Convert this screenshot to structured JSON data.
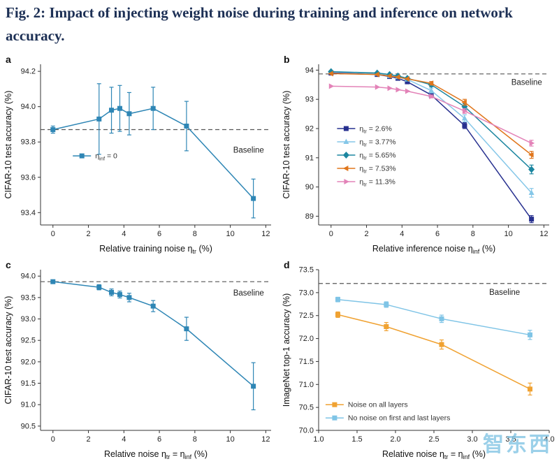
{
  "page": {
    "title": "Fig. 2: Impact of injecting weight noise during training and inference on network accuracy."
  },
  "watermark": {
    "text": "智东西"
  },
  "chart_data": [
    {
      "panel": "a",
      "type": "line",
      "xlabel": "Relative training noise η_[tr] (%)",
      "ylabel": "CIFAR-10 test accuracy (%)",
      "xlim": [
        -0.7,
        12.3
      ],
      "xticks": [
        0,
        2,
        4,
        6,
        8,
        10,
        12
      ],
      "xtick_decimals": 0,
      "ylim": [
        93.33,
        94.24
      ],
      "yticks": [
        93.4,
        93.6,
        93.8,
        94.0,
        94.2
      ],
      "ytick_decimals": 1,
      "baseline": {
        "y": 93.87,
        "label": "Baseline",
        "label_x": 11.9,
        "label_y": 93.74,
        "anchor": "end"
      },
      "legend": {
        "fx": 0.14,
        "fy": 0.57
      },
      "series": [
        {
          "name": "η_[inf] = 0",
          "color": "#2e86b5",
          "marker": "square",
          "x": [
            0,
            2.6,
            3.3,
            3.77,
            4.3,
            5.65,
            7.53,
            11.3
          ],
          "y": [
            93.87,
            93.93,
            93.98,
            93.99,
            93.96,
            93.99,
            93.89,
            93.48
          ],
          "yerr": [
            0.02,
            0.2,
            0.13,
            0.13,
            0.12,
            0.12,
            0.14,
            0.11
          ]
        }
      ]
    },
    {
      "panel": "b",
      "type": "line",
      "xlabel": "Relative inference noise η_[inf] (%)",
      "ylabel": "CIFAR-10 test accuracy (%)",
      "xlim": [
        -0.7,
        12.3
      ],
      "xticks": [
        0,
        2,
        4,
        6,
        8,
        10,
        12
      ],
      "xtick_decimals": 0,
      "ylim": [
        88.7,
        94.2
      ],
      "yticks": [
        89,
        90,
        91,
        92,
        93,
        94
      ],
      "ytick_decimals": 0,
      "baseline": {
        "y": 93.87,
        "label": "Baseline",
        "label_x": 11.9,
        "label_y": 93.5,
        "anchor": "end"
      },
      "legend": {
        "fx": 0.08,
        "fy": 0.4
      },
      "series": [
        {
          "name": "η_[tr] = 2.6%",
          "color": "#27308f",
          "marker": "square",
          "x": [
            0,
            2.6,
            3.3,
            3.77,
            4.3,
            5.65,
            7.53,
            11.3
          ],
          "y": [
            93.9,
            93.85,
            93.78,
            93.72,
            93.6,
            93.15,
            92.1,
            88.9
          ],
          "yerr": [
            0,
            0,
            0,
            0,
            0,
            0.08,
            0.1,
            0.12
          ]
        },
        {
          "name": "η_[tr] = 3.77%",
          "color": "#85c7e8",
          "marker": "triangle-up",
          "x": [
            0,
            2.6,
            3.3,
            3.77,
            4.3,
            5.65,
            7.53,
            11.3
          ],
          "y": [
            93.95,
            93.88,
            93.8,
            93.76,
            93.68,
            93.3,
            92.35,
            89.8
          ],
          "yerr": [
            0,
            0,
            0,
            0,
            0,
            0.08,
            0.12,
            0.15
          ]
        },
        {
          "name": "η_[tr] = 5.65%",
          "color": "#1c86a0",
          "marker": "diamond",
          "x": [
            0,
            2.6,
            3.3,
            3.77,
            4.3,
            5.65,
            7.53,
            11.3
          ],
          "y": [
            93.95,
            93.9,
            93.85,
            93.8,
            93.72,
            93.5,
            92.75,
            90.6
          ],
          "yerr": [
            0,
            0,
            0,
            0,
            0,
            0.07,
            0.1,
            0.15
          ]
        },
        {
          "name": "η_[tr] = 7.53%",
          "color": "#e0761c",
          "marker": "triangle-left",
          "x": [
            0,
            2.6,
            3.3,
            3.77,
            4.3,
            5.65,
            7.53,
            11.3
          ],
          "y": [
            93.88,
            93.85,
            93.8,
            93.76,
            93.7,
            93.55,
            92.9,
            91.1
          ],
          "yerr": [
            0,
            0,
            0,
            0,
            0,
            0.06,
            0.1,
            0.12
          ]
        },
        {
          "name": "η_[tr] = 11.3%",
          "color": "#e383b8",
          "marker": "triangle-right",
          "x": [
            0,
            2.6,
            3.3,
            3.77,
            4.3,
            5.65,
            7.53,
            11.3
          ],
          "y": [
            93.45,
            93.42,
            93.38,
            93.33,
            93.28,
            93.1,
            92.6,
            91.5
          ],
          "yerr": [
            0,
            0,
            0,
            0,
            0,
            0.05,
            0.08,
            0.1
          ]
        }
      ]
    },
    {
      "panel": "c",
      "type": "line",
      "xlabel": "Relative noise η_[tr] = η_[inf] (%)",
      "ylabel": "CIFAR-10 test accuracy (%)",
      "xlim": [
        -0.7,
        12.3
      ],
      "xticks": [
        0,
        2,
        4,
        6,
        8,
        10,
        12
      ],
      "xtick_decimals": 0,
      "ylim": [
        90.4,
        94.15
      ],
      "yticks": [
        90.5,
        91.0,
        91.5,
        92.0,
        92.5,
        93.0,
        93.5,
        94.0
      ],
      "ytick_decimals": 1,
      "baseline": {
        "y": 93.87,
        "label": "Baseline",
        "label_x": 11.9,
        "label_y": 93.55,
        "anchor": "end"
      },
      "series": [
        {
          "name": null,
          "color": "#2e86b5",
          "marker": "square",
          "x": [
            0,
            2.6,
            3.3,
            3.77,
            4.3,
            5.65,
            7.53,
            11.3
          ],
          "y": [
            93.87,
            93.74,
            93.62,
            93.57,
            93.5,
            93.3,
            92.77,
            91.43
          ],
          "yerr": [
            0.03,
            0.06,
            0.08,
            0.08,
            0.1,
            0.13,
            0.27,
            0.55
          ]
        }
      ]
    },
    {
      "panel": "d",
      "type": "line",
      "xlabel": "Relative noise η_[tr] = η_[inf] (%)",
      "ylabel": "ImageNet top-1 accuracy (%)",
      "xlim": [
        1.0,
        4.0
      ],
      "xticks": [
        1.0,
        1.5,
        2.0,
        2.5,
        3.0,
        3.5,
        4.0
      ],
      "xtick_decimals": 1,
      "ylim": [
        70.0,
        73.5
      ],
      "yticks": [
        70.0,
        70.5,
        71.0,
        71.5,
        72.0,
        72.5,
        73.0,
        73.5
      ],
      "ytick_decimals": 1,
      "baseline": {
        "y": 73.2,
        "label": "Baseline",
        "label_x": 3.62,
        "label_y": 72.95,
        "anchor": "end"
      },
      "legend": {
        "fx": 0.03,
        "fy": 0.84
      },
      "series": [
        {
          "name": "Noise on all layers",
          "color": "#f0a232",
          "marker": "square",
          "x": [
            1.25,
            1.88,
            2.6,
            3.75
          ],
          "y": [
            72.52,
            72.26,
            71.87,
            70.9
          ],
          "yerr": [
            0.06,
            0.09,
            0.1,
            0.13
          ]
        },
        {
          "name": "No noise on first and last layers",
          "color": "#7fc4e6",
          "marker": "square",
          "x": [
            1.25,
            1.88,
            2.6,
            3.75
          ],
          "y": [
            72.85,
            72.74,
            72.43,
            72.08
          ],
          "yerr": [
            0.05,
            0.06,
            0.08,
            0.1
          ]
        }
      ]
    }
  ]
}
